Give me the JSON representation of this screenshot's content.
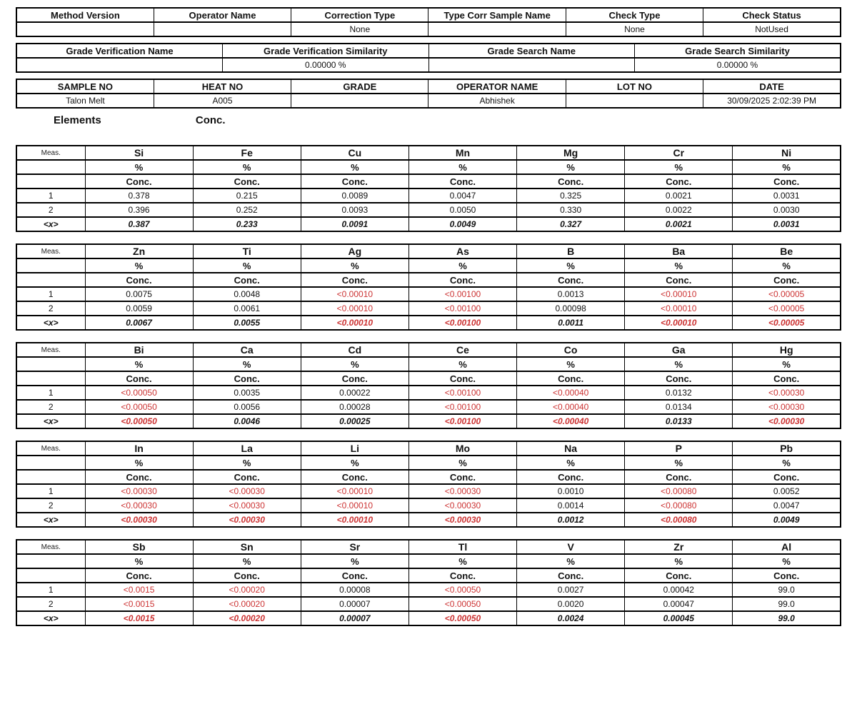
{
  "colors": {
    "limit_value_red": "#cc3333",
    "text_black": "#111111",
    "border_black": "#000000"
  },
  "section_labels": {
    "elements": "Elements",
    "conc": "Conc."
  },
  "info_tables": [
    {
      "name": "method-info-table",
      "columns": [
        {
          "label": "Method Version",
          "value": ""
        },
        {
          "label": "Operator Name",
          "value": ""
        },
        {
          "label": "Correction Type",
          "value": "None"
        },
        {
          "label": "Type Corr Sample Name",
          "value": ""
        },
        {
          "label": "Check Type",
          "value": "None"
        },
        {
          "label": "Check Status",
          "value": "NotUsed"
        }
      ]
    },
    {
      "name": "grade-info-table",
      "columns": [
        {
          "label": "Grade Verification Name",
          "value": ""
        },
        {
          "label": "Grade Verification Similarity",
          "value": "0.00000 %"
        },
        {
          "label": "Grade Search Name",
          "value": ""
        },
        {
          "label": "Grade Search Similarity",
          "value": "0.00000 %"
        }
      ]
    },
    {
      "name": "sample-info-table",
      "columns": [
        {
          "label": "SAMPLE NO",
          "value": "Talon Melt"
        },
        {
          "label": "HEAT NO",
          "value": "A005"
        },
        {
          "label": "GRADE",
          "value": ""
        },
        {
          "label": "OPERATOR NAME",
          "value": "Abhishek"
        },
        {
          "label": "LOT NO",
          "value": ""
        },
        {
          "label": "DATE",
          "value": "30/09/2025 2:02:39 PM"
        }
      ]
    }
  ],
  "element_tables": {
    "meas_header": "Meas.",
    "unit_label": "%",
    "conc_label": "Conc.",
    "groups": [
      {
        "elements": [
          "Si",
          "Fe",
          "Cu",
          "Mn",
          "Mg",
          "Cr",
          "Ni"
        ],
        "measurements": [
          {
            "label": "1",
            "values": [
              "0.378",
              "0.215",
              "0.0089",
              "0.0047",
              "0.325",
              "0.0021",
              "0.0031"
            ]
          },
          {
            "label": "2",
            "values": [
              "0.396",
              "0.252",
              "0.0093",
              "0.0050",
              "0.330",
              "0.0022",
              "0.0030"
            ]
          },
          {
            "label": "<x>",
            "mean": true,
            "values": [
              "0.387",
              "0.233",
              "0.0091",
              "0.0049",
              "0.327",
              "0.0021",
              "0.0031"
            ]
          }
        ]
      },
      {
        "elements": [
          "Zn",
          "Ti",
          "Ag",
          "As",
          "B",
          "Ba",
          "Be"
        ],
        "measurements": [
          {
            "label": "1",
            "values": [
              "0.0075",
              "0.0048",
              "<0.00010",
              "<0.00100",
              "0.0013",
              "<0.00010",
              "<0.00005"
            ]
          },
          {
            "label": "2",
            "values": [
              "0.0059",
              "0.0061",
              "<0.00010",
              "<0.00100",
              "0.00098",
              "<0.00010",
              "<0.00005"
            ]
          },
          {
            "label": "<x>",
            "mean": true,
            "values": [
              "0.0067",
              "0.0055",
              "<0.00010",
              "<0.00100",
              "0.0011",
              "<0.00010",
              "<0.00005"
            ]
          }
        ]
      },
      {
        "elements": [
          "Bi",
          "Ca",
          "Cd",
          "Ce",
          "Co",
          "Ga",
          "Hg"
        ],
        "measurements": [
          {
            "label": "1",
            "values": [
              "<0.00050",
              "0.0035",
              "0.00022",
              "<0.00100",
              "<0.00040",
              "0.0132",
              "<0.00030"
            ]
          },
          {
            "label": "2",
            "values": [
              "<0.00050",
              "0.0056",
              "0.00028",
              "<0.00100",
              "<0.00040",
              "0.0134",
              "<0.00030"
            ]
          },
          {
            "label": "<x>",
            "mean": true,
            "values": [
              "<0.00050",
              "0.0046",
              "0.00025",
              "<0.00100",
              "<0.00040",
              "0.0133",
              "<0.00030"
            ]
          }
        ]
      },
      {
        "elements": [
          "In",
          "La",
          "Li",
          "Mo",
          "Na",
          "P",
          "Pb"
        ],
        "measurements": [
          {
            "label": "1",
            "values": [
              "<0.00030",
              "<0.00030",
              "<0.00010",
              "<0.00030",
              "0.0010",
              "<0.00080",
              "0.0052"
            ]
          },
          {
            "label": "2",
            "values": [
              "<0.00030",
              "<0.00030",
              "<0.00010",
              "<0.00030",
              "0.0014",
              "<0.00080",
              "0.0047"
            ]
          },
          {
            "label": "<x>",
            "mean": true,
            "values": [
              "<0.00030",
              "<0.00030",
              "<0.00010",
              "<0.00030",
              "0.0012",
              "<0.00080",
              "0.0049"
            ]
          }
        ]
      },
      {
        "elements": [
          "Sb",
          "Sn",
          "Sr",
          "Tl",
          "V",
          "Zr",
          "Al"
        ],
        "measurements": [
          {
            "label": "1",
            "values": [
              "<0.0015",
              "<0.00020",
              "0.00008",
              "<0.00050",
              "0.0027",
              "0.00042",
              "99.0"
            ]
          },
          {
            "label": "2",
            "values": [
              "<0.0015",
              "<0.00020",
              "0.00007",
              "<0.00050",
              "0.0020",
              "0.00047",
              "99.0"
            ]
          },
          {
            "label": "<x>",
            "mean": true,
            "values": [
              "<0.0015",
              "<0.00020",
              "0.00007",
              "<0.00050",
              "0.0024",
              "0.00045",
              "99.0"
            ]
          }
        ]
      }
    ]
  }
}
